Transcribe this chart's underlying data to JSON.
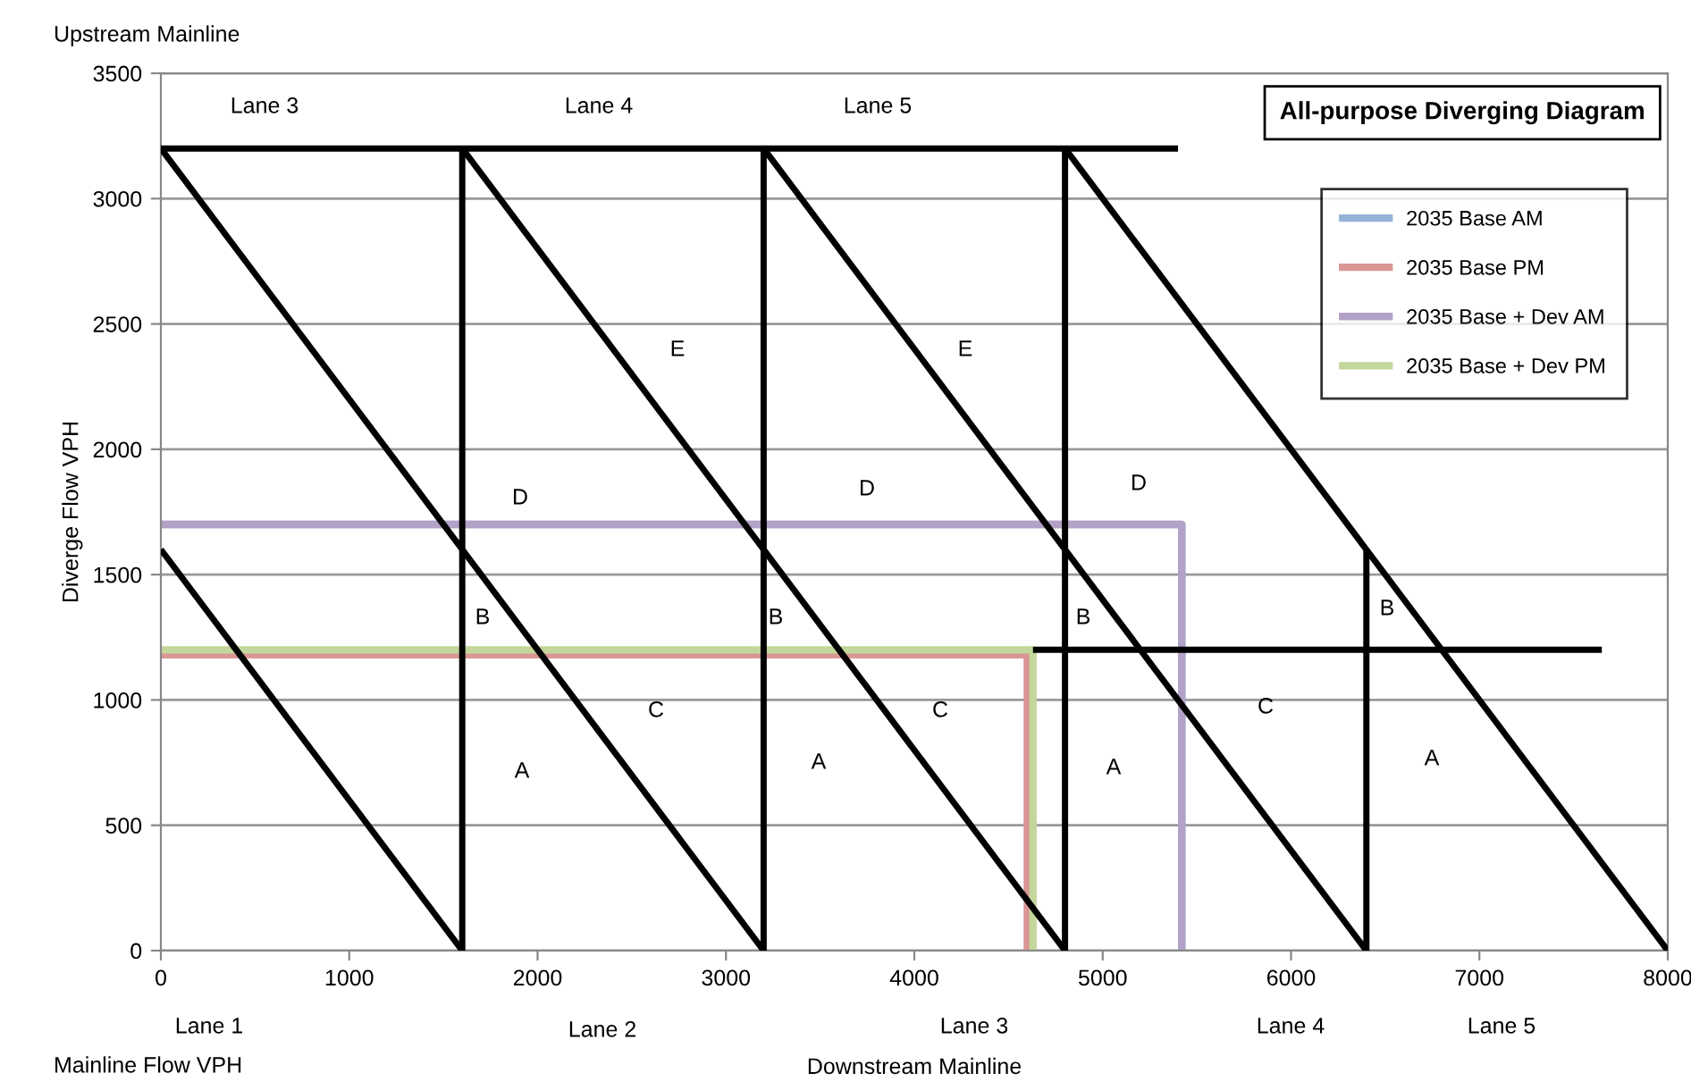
{
  "chart_data": {
    "type": "line",
    "title": "All-purpose Diverging Diagram",
    "xlabel": "Downstream Mainline",
    "ylabel": "Diverge Flow VPH",
    "xlim": [
      0,
      8000
    ],
    "xticks": [
      0,
      1000,
      2000,
      3000,
      4000,
      5000,
      6000,
      7000,
      8000
    ],
    "ylim": [
      0,
      3500
    ],
    "yticks": [
      0,
      500,
      1000,
      1500,
      2000,
      2500,
      3000,
      3500
    ],
    "grid": "y",
    "legend": "top right",
    "marker": "none",
    "line_style": "solid",
    "series": [
      {
        "color": "#000000",
        "x": [
          0,
          5400
        ],
        "values": [
          3200,
          3200
        ]
      },
      {
        "color": "#000000",
        "x": [
          0,
          1600
        ],
        "values": [
          1600,
          0
        ]
      },
      {
        "color": "#000000",
        "x": [
          0,
          3200
        ],
        "values": [
          3200,
          0
        ]
      },
      {
        "color": "#000000",
        "x": [
          1600,
          1600
        ],
        "values": [
          0,
          3200
        ]
      },
      {
        "color": "#000000",
        "x": [
          1600,
          4800
        ],
        "values": [
          3200,
          0
        ]
      },
      {
        "color": "#000000",
        "x": [
          3200,
          3200
        ],
        "values": [
          0,
          3200
        ]
      },
      {
        "color": "#000000",
        "x": [
          3200,
          6400
        ],
        "values": [
          3200,
          0
        ]
      },
      {
        "color": "#000000",
        "x": [
          4800,
          4800
        ],
        "values": [
          0,
          3200
        ]
      },
      {
        "color": "#000000",
        "x": [
          4800,
          8000
        ],
        "values": [
          3200,
          0
        ]
      },
      {
        "color": "#000000",
        "x": [
          6400,
          6400
        ],
        "values": [
          0,
          1600
        ]
      },
      {
        "color": "#000000",
        "x": [
          4630,
          7650
        ],
        "values": [
          1200,
          1200
        ]
      },
      {
        "name": "2035 Base AM",
        "color": "#95b3d7",
        "x": [
          0,
          5420,
          5420
        ],
        "values": [
          1700,
          1700,
          0
        ]
      },
      {
        "name": "2035 Base PM",
        "color": "#d99694",
        "x": [
          0,
          4600,
          4600
        ],
        "values": [
          1180,
          1180,
          0
        ]
      },
      {
        "name": "2035 Base + Dev AM",
        "color": "#b3a2c7",
        "x": [
          0,
          5420,
          5420
        ],
        "values": [
          1700,
          1700,
          0
        ]
      },
      {
        "name": "2035 Base + Dev PM",
        "color": "#c3d69b",
        "x": [
          0,
          4630,
          4630
        ],
        "values": [
          1200,
          1200,
          0
        ]
      }
    ],
    "annotations": [
      "Upstream Mainline",
      "Mainline Flow VPH",
      "Lane 1",
      "Lane 2",
      "Lane 3",
      "Lane 4",
      "Lane 5",
      "Lane 3",
      "Lane 4",
      "Lane 5",
      "D",
      "E",
      "D",
      "E",
      "D",
      "B",
      "B",
      "B",
      "B",
      "C",
      "C",
      "C",
      "A",
      "A",
      "A",
      "A"
    ]
  }
}
